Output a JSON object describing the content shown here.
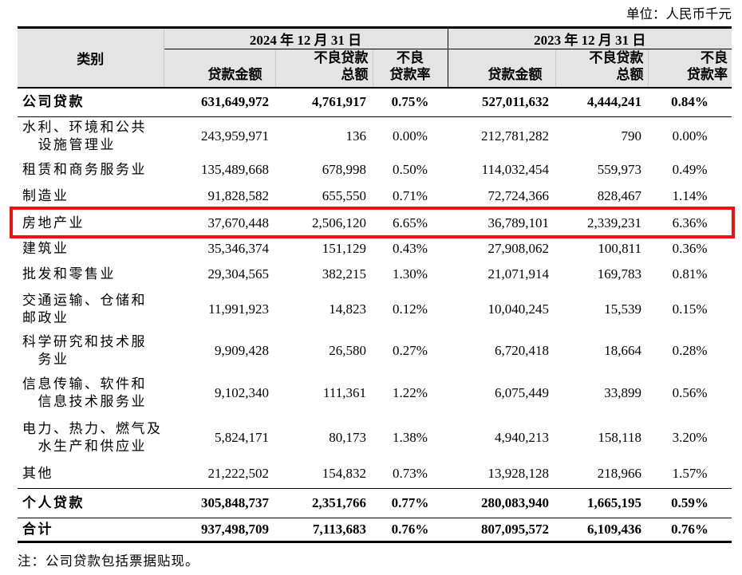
{
  "unit_label": "单位：人民币千元",
  "table": {
    "category_header": "类别",
    "col_groups": [
      {
        "label": "2024 年 12 月 31 日",
        "columns": [
          "贷款金额",
          "不良贷款\n总额",
          "不良\n贷款率"
        ]
      },
      {
        "label": "2023 年 12 月 31 日",
        "columns": [
          "贷款金额",
          "不良贷款\n总额",
          "不良\n贷款率"
        ]
      }
    ],
    "rows": [
      {
        "category": "公司贷款",
        "bold": true,
        "values": [
          "631,649,972",
          "4,761,917",
          "0.75%",
          "527,011,632",
          "4,444,241",
          "0.84%"
        ]
      },
      {
        "category": "水利、环境和公共\n　设施管理业",
        "bold": false,
        "values": [
          "243,959,971",
          "136",
          "0.00%",
          "212,781,282",
          "790",
          "0.00%"
        ]
      },
      {
        "category": "租赁和商务服务业",
        "bold": false,
        "values": [
          "135,489,668",
          "678,998",
          "0.50%",
          "114,032,454",
          "559,973",
          "0.49%"
        ]
      },
      {
        "category": "制造业",
        "bold": false,
        "values": [
          "91,828,582",
          "655,550",
          "0.71%",
          "72,724,366",
          "828,467",
          "1.14%"
        ]
      },
      {
        "category": "房地产业",
        "bold": false,
        "values": [
          "37,670,448",
          "2,506,120",
          "6.65%",
          "36,789,101",
          "2,339,231",
          "6.36%"
        ]
      },
      {
        "category": "建筑业",
        "bold": false,
        "values": [
          "35,346,374",
          "151,129",
          "0.43%",
          "27,908,062",
          "100,811",
          "0.36%"
        ]
      },
      {
        "category": "批发和零售业",
        "bold": false,
        "values": [
          "29,304,565",
          "382,215",
          "1.30%",
          "21,071,914",
          "169,783",
          "0.81%"
        ]
      },
      {
        "category": "交通运输、仓储和\n邮政业",
        "bold": false,
        "values": [
          "11,991,923",
          "14,823",
          "0.12%",
          "10,040,245",
          "15,539",
          "0.15%"
        ]
      },
      {
        "category": "科学研究和技术服\n　务业",
        "bold": false,
        "values": [
          "9,909,428",
          "26,580",
          "0.27%",
          "6,720,418",
          "18,664",
          "0.28%"
        ]
      },
      {
        "category": "信息传输、软件和\n　信息技术服务业",
        "bold": false,
        "values": [
          "9,102,340",
          "111,361",
          "1.22%",
          "6,075,449",
          "33,899",
          "0.56%"
        ]
      },
      {
        "category": "电力、热力、燃气及\n　水生产和供应业",
        "bold": false,
        "values": [
          "5,824,171",
          "80,173",
          "1.38%",
          "4,940,213",
          "158,118",
          "3.20%"
        ]
      },
      {
        "category": "其他",
        "bold": false,
        "values": [
          "21,222,502",
          "154,832",
          "0.73%",
          "13,928,128",
          "218,966",
          "1.57%"
        ]
      },
      {
        "category": "个人贷款",
        "bold": true,
        "values": [
          "305,848,737",
          "2,351,766",
          "0.77%",
          "280,083,940",
          "1,665,195",
          "0.59%"
        ]
      },
      {
        "category": "合计",
        "bold": true,
        "values": [
          "937,498,709",
          "7,113,683",
          "0.76%",
          "807,095,572",
          "6,109,436",
          "0.76%"
        ]
      }
    ],
    "note": "注：公司贷款包括票据贴现。"
  },
  "highlight": {
    "row_index": 4,
    "row_label": "房地产业",
    "color": "#ee1111"
  }
}
